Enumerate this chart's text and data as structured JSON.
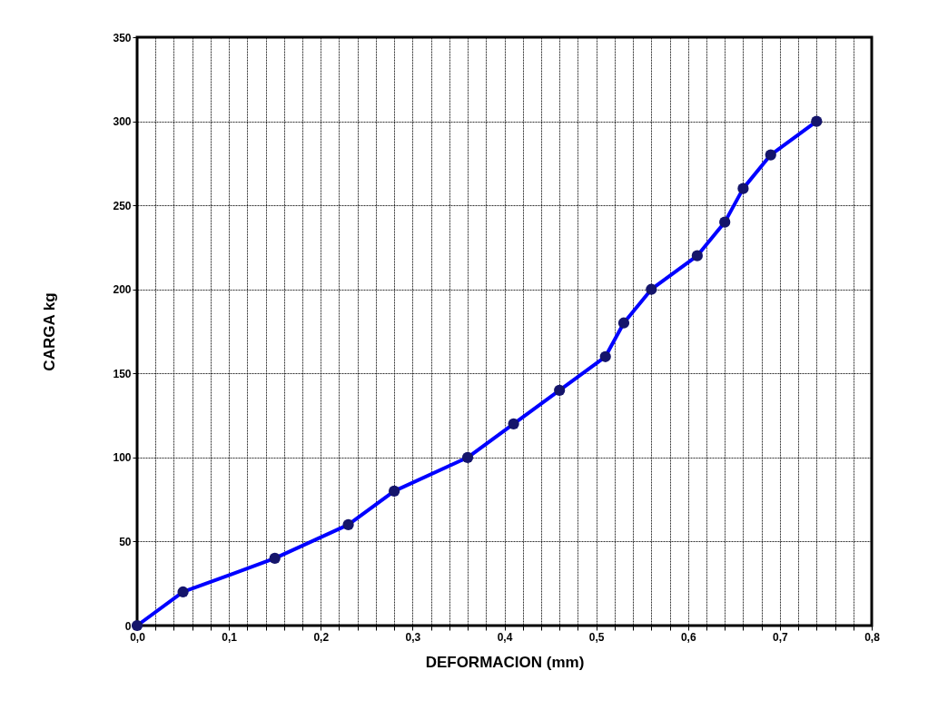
{
  "chart_data": {
    "type": "line",
    "xlabel": "DEFORMACION (mm)",
    "ylabel": "CARGA kg",
    "x": [
      0,
      0.05,
      0.15,
      0.23,
      0.28,
      0.36,
      0.41,
      0.46,
      0.51,
      0.53,
      0.56,
      0.61,
      0.64,
      0.66,
      0.69,
      0.74
    ],
    "series": [
      {
        "color": "#0000ff",
        "values": [
          0,
          20,
          40,
          60,
          80,
          100,
          120,
          140,
          160,
          180,
          200,
          220,
          240,
          260,
          280,
          300
        ]
      }
    ],
    "xlim": [
      0,
      0.8
    ],
    "xticks": [
      {
        "value": 0,
        "label": "0,0"
      },
      {
        "value": 0.02,
        "label": null
      },
      {
        "value": 0.04,
        "label": null
      },
      {
        "value": 0.06,
        "label": null
      },
      {
        "value": 0.08,
        "label": null
      },
      {
        "value": 0.1,
        "label": "0,1"
      },
      {
        "value": 0.12,
        "label": null
      },
      {
        "value": 0.14,
        "label": null
      },
      {
        "value": 0.16,
        "label": null
      },
      {
        "value": 0.18,
        "label": null
      },
      {
        "value": 0.2,
        "label": "0,2"
      },
      {
        "value": 0.22,
        "label": null
      },
      {
        "value": 0.24,
        "label": null
      },
      {
        "value": 0.26,
        "label": null
      },
      {
        "value": 0.28,
        "label": null
      },
      {
        "value": 0.3,
        "label": "0,3"
      },
      {
        "value": 0.32,
        "label": null
      },
      {
        "value": 0.34,
        "label": null
      },
      {
        "value": 0.36,
        "label": null
      },
      {
        "value": 0.38,
        "label": null
      },
      {
        "value": 0.4,
        "label": "0,4"
      },
      {
        "value": 0.42,
        "label": null
      },
      {
        "value": 0.44,
        "label": null
      },
      {
        "value": 0.46,
        "label": null
      },
      {
        "value": 0.48,
        "label": null
      },
      {
        "value": 0.5,
        "label": "0,5"
      },
      {
        "value": 0.52,
        "label": null
      },
      {
        "value": 0.54,
        "label": null
      },
      {
        "value": 0.56,
        "label": null
      },
      {
        "value": 0.58,
        "label": null
      },
      {
        "value": 0.6,
        "label": "0,6"
      },
      {
        "value": 0.62,
        "label": null
      },
      {
        "value": 0.64,
        "label": null
      },
      {
        "value": 0.66,
        "label": null
      },
      {
        "value": 0.68,
        "label": null
      },
      {
        "value": 0.7,
        "label": "0,7"
      },
      {
        "value": 0.72,
        "label": null
      },
      {
        "value": 0.74,
        "label": null
      },
      {
        "value": 0.76,
        "label": null
      },
      {
        "value": 0.78,
        "label": null
      },
      {
        "value": 0.8,
        "label": "0,8"
      }
    ],
    "ylim": [
      0,
      350
    ],
    "yticks": [
      0,
      50,
      100,
      150,
      200,
      250,
      300,
      350
    ],
    "grid": true,
    "marker": "circle",
    "line_style": "solid"
  }
}
